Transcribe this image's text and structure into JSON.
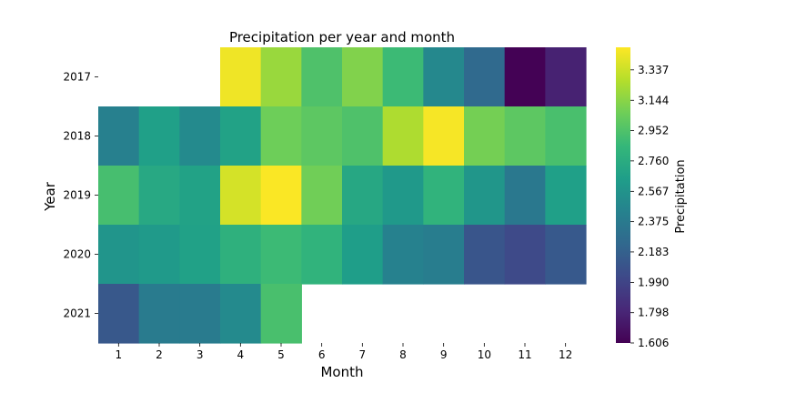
{
  "chart_data": {
    "type": "heatmap",
    "title": "Precipitation per year and month",
    "xlabel": "Month",
    "ylabel": "Year",
    "colorbar_label": "Precipitation",
    "x_categories": [
      "1",
      "2",
      "3",
      "4",
      "5",
      "6",
      "7",
      "8",
      "9",
      "10",
      "11",
      "12"
    ],
    "y_categories": [
      "2017",
      "2018",
      "2019",
      "2020",
      "2021"
    ],
    "values": [
      [
        null,
        null,
        null,
        3.44,
        3.19,
        2.95,
        3.12,
        2.88,
        2.48,
        2.25,
        1.61,
        1.78
      ],
      [
        2.42,
        2.66,
        2.5,
        2.68,
        3.06,
        3.0,
        2.95,
        3.25,
        3.46,
        3.08,
        3.0,
        2.93
      ],
      [
        2.92,
        2.73,
        2.68,
        3.36,
        3.47,
        3.07,
        2.72,
        2.61,
        2.82,
        2.59,
        2.36,
        2.66
      ],
      [
        2.58,
        2.62,
        2.67,
        2.8,
        2.88,
        2.82,
        2.65,
        2.43,
        2.4,
        2.1,
        2.03,
        2.13
      ],
      [
        2.12,
        2.38,
        2.38,
        2.5,
        2.93,
        null,
        null,
        null,
        null,
        null,
        null,
        null
      ]
    ],
    "colorbar_range": [
      1.606,
      3.48
    ],
    "colorbar_ticks": [
      "1.606",
      "1.798",
      "1.990",
      "2.183",
      "2.375",
      "2.567",
      "2.760",
      "2.952",
      "3.144",
      "3.337"
    ],
    "colormap": "viridis",
    "colormap_stops": [
      "#440154",
      "#482878",
      "#3e4989",
      "#31688e",
      "#26828e",
      "#1f9e89",
      "#35b779",
      "#6ece58",
      "#b5de2b",
      "#fde725"
    ]
  }
}
